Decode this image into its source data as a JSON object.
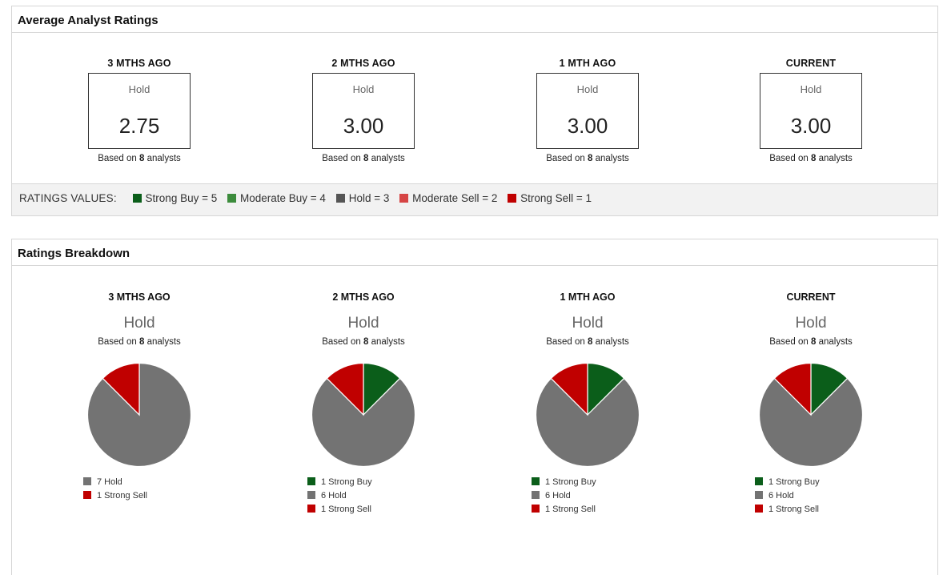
{
  "average_panel": {
    "title": "Average Analyst Ratings",
    "columns": [
      {
        "title": "3 MTHS AGO",
        "label": "Hold",
        "value": "2.75",
        "based_prefix": "Based on ",
        "count": "8",
        "based_suffix": " analysts"
      },
      {
        "title": "2 MTHS AGO",
        "label": "Hold",
        "value": "3.00",
        "based_prefix": "Based on ",
        "count": "8",
        "based_suffix": " analysts"
      },
      {
        "title": "1 MTH AGO",
        "label": "Hold",
        "value": "3.00",
        "based_prefix": "Based on ",
        "count": "8",
        "based_suffix": " analysts"
      },
      {
        "title": "CURRENT",
        "label": "Hold",
        "value": "3.00",
        "based_prefix": "Based on ",
        "count": "8",
        "based_suffix": " analysts"
      }
    ],
    "ratings_values": {
      "title": "RATINGS VALUES:",
      "items": [
        {
          "label": "Strong Buy = 5",
          "color": "#0b5e1a"
        },
        {
          "label": "Moderate Buy = 4",
          "color": "#3d8c3d"
        },
        {
          "label": "Hold = 3",
          "color": "#555555"
        },
        {
          "label": "Moderate Sell = 2",
          "color": "#d64545"
        },
        {
          "label": "Strong Sell = 1",
          "color": "#c00000"
        }
      ]
    }
  },
  "breakdown_panel": {
    "title": "Ratings Breakdown",
    "columns": [
      {
        "title": "3 MTHS AGO",
        "rating": "Hold",
        "based_prefix": "Based on ",
        "count": "8",
        "based_suffix": " analysts"
      },
      {
        "title": "2 MTHS AGO",
        "rating": "Hold",
        "based_prefix": "Based on ",
        "count": "8",
        "based_suffix": " analysts"
      },
      {
        "title": "1 MTH AGO",
        "rating": "Hold",
        "based_prefix": "Based on ",
        "count": "8",
        "based_suffix": " analysts"
      },
      {
        "title": "CURRENT",
        "rating": "Hold",
        "based_prefix": "Based on ",
        "count": "8",
        "based_suffix": " analysts"
      }
    ]
  },
  "colors": {
    "strong_buy": "#0b5e1a",
    "hold_pie": "#737373",
    "strong_sell": "#c00000"
  },
  "chart_data": [
    {
      "type": "pie",
      "categories": [
        "Hold",
        "Strong Sell"
      ],
      "values": [
        7,
        1
      ],
      "legend": [
        "7 Hold",
        "1 Strong Sell"
      ],
      "colors": [
        "#737373",
        "#c00000"
      ]
    },
    {
      "type": "pie",
      "categories": [
        "Strong Buy",
        "Hold",
        "Strong Sell"
      ],
      "values": [
        1,
        6,
        1
      ],
      "legend": [
        "1 Strong Buy",
        "6 Hold",
        "1 Strong Sell"
      ],
      "colors": [
        "#0b5e1a",
        "#737373",
        "#c00000"
      ]
    },
    {
      "type": "pie",
      "categories": [
        "Strong Buy",
        "Hold",
        "Strong Sell"
      ],
      "values": [
        1,
        6,
        1
      ],
      "legend": [
        "1 Strong Buy",
        "6 Hold",
        "1 Strong Sell"
      ],
      "colors": [
        "#0b5e1a",
        "#737373",
        "#c00000"
      ]
    },
    {
      "type": "pie",
      "categories": [
        "Strong Buy",
        "Hold",
        "Strong Sell"
      ],
      "values": [
        1,
        6,
        1
      ],
      "legend": [
        "1 Strong Buy",
        "6 Hold",
        "1 Strong Sell"
      ],
      "colors": [
        "#0b5e1a",
        "#737373",
        "#c00000"
      ]
    }
  ]
}
